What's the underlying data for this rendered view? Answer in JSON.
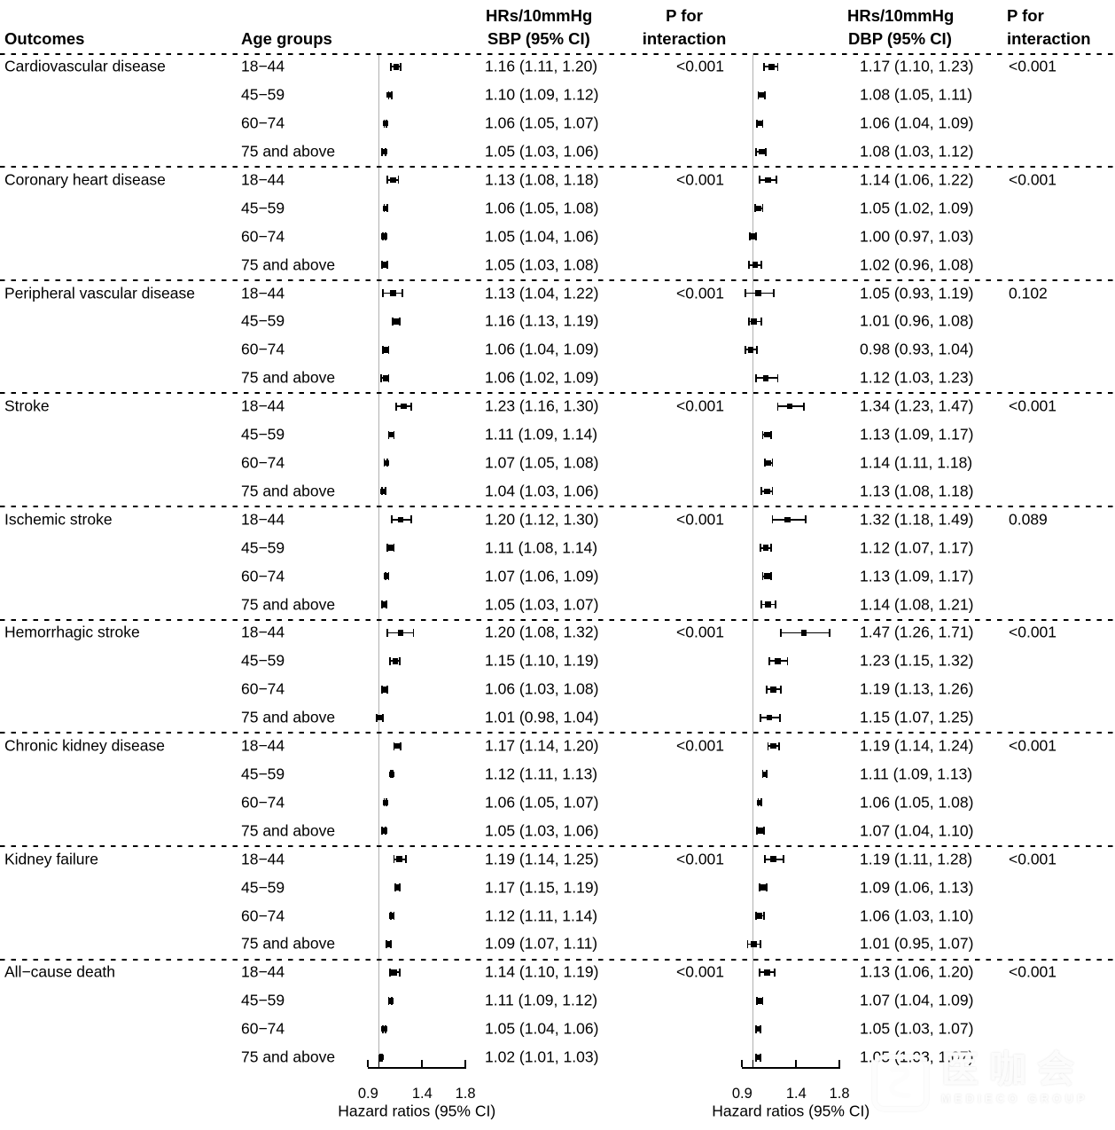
{
  "figure": {
    "columns": {
      "outcomes": "Outcomes",
      "age": "Age groups",
      "sbp": {
        "line1": "HRs/10mmHg",
        "line2": "SBP (95% CI)"
      },
      "p1": {
        "line1": "P for",
        "line2": "interaction"
      },
      "dbp": {
        "line1": "HRs/10mmHg",
        "line2": "DBP (95% CI)"
      },
      "p2": {
        "line1": "P for",
        "line2": "interaction"
      }
    }
  },
  "chart_data": {
    "type": "forest",
    "scale": "linear",
    "axis": {
      "range": [
        0.9,
        1.8
      ],
      "ticks": [
        0.9,
        1.0,
        1.4,
        1.8
      ],
      "tick_labels": [
        {
          "v": 0.9,
          "t": "0.9"
        },
        {
          "v": 1.4,
          "t": "1.4"
        },
        {
          "v": 1.8,
          "t": "1.8"
        }
      ],
      "refline": 1.0,
      "xlabel": "Hazard ratios (95% CI)"
    },
    "groups": [
      {
        "outcome": "Cardiovascular disease",
        "rows": [
          {
            "age": "18−44",
            "sbp": {
              "hr": 1.16,
              "lo": 1.11,
              "hi": 1.2,
              "label": "1.16 (1.11, 1.20)"
            },
            "p_sbp": "<0.001",
            "dbp": {
              "hr": 1.17,
              "lo": 1.1,
              "hi": 1.23,
              "label": "1.17 (1.10, 1.23)"
            },
            "p_dbp": "<0.001"
          },
          {
            "age": "45−59",
            "sbp": {
              "hr": 1.1,
              "lo": 1.09,
              "hi": 1.12,
              "label": "1.10 (1.09, 1.12)"
            },
            "p_sbp": "",
            "dbp": {
              "hr": 1.08,
              "lo": 1.05,
              "hi": 1.11,
              "label": "1.08 (1.05, 1.11)"
            },
            "p_dbp": ""
          },
          {
            "age": "60−74",
            "sbp": {
              "hr": 1.06,
              "lo": 1.05,
              "hi": 1.07,
              "label": "1.06 (1.05, 1.07)"
            },
            "p_sbp": "",
            "dbp": {
              "hr": 1.06,
              "lo": 1.04,
              "hi": 1.09,
              "label": "1.06 (1.04, 1.09)"
            },
            "p_dbp": ""
          },
          {
            "age": "75 and above",
            "sbp": {
              "hr": 1.05,
              "lo": 1.03,
              "hi": 1.06,
              "label": "1.05 (1.03, 1.06)"
            },
            "p_sbp": "",
            "dbp": {
              "hr": 1.08,
              "lo": 1.03,
              "hi": 1.12,
              "label": "1.08 (1.03, 1.12)"
            },
            "p_dbp": ""
          }
        ]
      },
      {
        "outcome": "Coronary heart disease",
        "rows": [
          {
            "age": "18−44",
            "sbp": {
              "hr": 1.13,
              "lo": 1.08,
              "hi": 1.18,
              "label": "1.13 (1.08, 1.18)"
            },
            "p_sbp": "<0.001",
            "dbp": {
              "hr": 1.14,
              "lo": 1.06,
              "hi": 1.22,
              "label": "1.14 (1.06, 1.22)"
            },
            "p_dbp": "<0.001"
          },
          {
            "age": "45−59",
            "sbp": {
              "hr": 1.06,
              "lo": 1.05,
              "hi": 1.08,
              "label": "1.06 (1.05, 1.08)"
            },
            "p_sbp": "",
            "dbp": {
              "hr": 1.05,
              "lo": 1.02,
              "hi": 1.09,
              "label": "1.05 (1.02, 1.09)"
            },
            "p_dbp": ""
          },
          {
            "age": "60−74",
            "sbp": {
              "hr": 1.05,
              "lo": 1.04,
              "hi": 1.06,
              "label": "1.05 (1.04, 1.06)"
            },
            "p_sbp": "",
            "dbp": {
              "hr": 1.0,
              "lo": 0.97,
              "hi": 1.03,
              "label": "1.00 (0.97, 1.03)"
            },
            "p_dbp": ""
          },
          {
            "age": "75 and above",
            "sbp": {
              "hr": 1.05,
              "lo": 1.03,
              "hi": 1.08,
              "label": "1.05 (1.03, 1.08)"
            },
            "p_sbp": "",
            "dbp": {
              "hr": 1.02,
              "lo": 0.96,
              "hi": 1.08,
              "label": "1.02 (0.96, 1.08)"
            },
            "p_dbp": ""
          }
        ]
      },
      {
        "outcome": "Peripheral vascular disease",
        "rows": [
          {
            "age": "18−44",
            "sbp": {
              "hr": 1.13,
              "lo": 1.04,
              "hi": 1.22,
              "label": "1.13 (1.04, 1.22)"
            },
            "p_sbp": "<0.001",
            "dbp": {
              "hr": 1.05,
              "lo": 0.93,
              "hi": 1.19,
              "label": "1.05 (0.93, 1.19)"
            },
            "p_dbp": "0.102"
          },
          {
            "age": "45−59",
            "sbp": {
              "hr": 1.16,
              "lo": 1.13,
              "hi": 1.19,
              "label": "1.16 (1.13, 1.19)"
            },
            "p_sbp": "",
            "dbp": {
              "hr": 1.01,
              "lo": 0.96,
              "hi": 1.08,
              "label": "1.01 (0.96, 1.08)"
            },
            "p_dbp": ""
          },
          {
            "age": "60−74",
            "sbp": {
              "hr": 1.06,
              "lo": 1.04,
              "hi": 1.09,
              "label": "1.06 (1.04, 1.09)"
            },
            "p_sbp": "",
            "dbp": {
              "hr": 0.98,
              "lo": 0.93,
              "hi": 1.04,
              "label": "0.98 (0.93, 1.04)"
            },
            "p_dbp": ""
          },
          {
            "age": "75 and above",
            "sbp": {
              "hr": 1.06,
              "lo": 1.02,
              "hi": 1.09,
              "label": "1.06 (1.02, 1.09)"
            },
            "p_sbp": "",
            "dbp": {
              "hr": 1.12,
              "lo": 1.03,
              "hi": 1.23,
              "label": "1.12 (1.03, 1.23)"
            },
            "p_dbp": ""
          }
        ]
      },
      {
        "outcome": "Stroke",
        "rows": [
          {
            "age": "18−44",
            "sbp": {
              "hr": 1.23,
              "lo": 1.16,
              "hi": 1.3,
              "label": "1.23 (1.16, 1.30)"
            },
            "p_sbp": "<0.001",
            "dbp": {
              "hr": 1.34,
              "lo": 1.23,
              "hi": 1.47,
              "label": "1.34 (1.23, 1.47)"
            },
            "p_dbp": "<0.001"
          },
          {
            "age": "45−59",
            "sbp": {
              "hr": 1.11,
              "lo": 1.09,
              "hi": 1.14,
              "label": "1.11 (1.09, 1.14)"
            },
            "p_sbp": "",
            "dbp": {
              "hr": 1.13,
              "lo": 1.09,
              "hi": 1.17,
              "label": "1.13 (1.09, 1.17)"
            },
            "p_dbp": ""
          },
          {
            "age": "60−74",
            "sbp": {
              "hr": 1.07,
              "lo": 1.05,
              "hi": 1.08,
              "label": "1.07 (1.05, 1.08)"
            },
            "p_sbp": "",
            "dbp": {
              "hr": 1.14,
              "lo": 1.11,
              "hi": 1.18,
              "label": "1.14 (1.11, 1.18)"
            },
            "p_dbp": ""
          },
          {
            "age": "75 and above",
            "sbp": {
              "hr": 1.04,
              "lo": 1.03,
              "hi": 1.06,
              "label": "1.04 (1.03, 1.06)"
            },
            "p_sbp": "",
            "dbp": {
              "hr": 1.13,
              "lo": 1.08,
              "hi": 1.18,
              "label": "1.13 (1.08, 1.18)"
            },
            "p_dbp": ""
          }
        ]
      },
      {
        "outcome": "Ischemic stroke",
        "rows": [
          {
            "age": "18−44",
            "sbp": {
              "hr": 1.2,
              "lo": 1.12,
              "hi": 1.3,
              "label": "1.20 (1.12, 1.30)"
            },
            "p_sbp": "<0.001",
            "dbp": {
              "hr": 1.32,
              "lo": 1.18,
              "hi": 1.49,
              "label": "1.32 (1.18, 1.49)"
            },
            "p_dbp": "0.089"
          },
          {
            "age": "45−59",
            "sbp": {
              "hr": 1.11,
              "lo": 1.08,
              "hi": 1.14,
              "label": "1.11 (1.08, 1.14)"
            },
            "p_sbp": "",
            "dbp": {
              "hr": 1.12,
              "lo": 1.07,
              "hi": 1.17,
              "label": "1.12 (1.07, 1.17)"
            },
            "p_dbp": ""
          },
          {
            "age": "60−74",
            "sbp": {
              "hr": 1.07,
              "lo": 1.06,
              "hi": 1.09,
              "label": "1.07 (1.06, 1.09)"
            },
            "p_sbp": "",
            "dbp": {
              "hr": 1.13,
              "lo": 1.09,
              "hi": 1.17,
              "label": "1.13 (1.09, 1.17)"
            },
            "p_dbp": ""
          },
          {
            "age": "75 and above",
            "sbp": {
              "hr": 1.05,
              "lo": 1.03,
              "hi": 1.07,
              "label": "1.05 (1.03, 1.07)"
            },
            "p_sbp": "",
            "dbp": {
              "hr": 1.14,
              "lo": 1.08,
              "hi": 1.21,
              "label": "1.14 (1.08, 1.21)"
            },
            "p_dbp": ""
          }
        ]
      },
      {
        "outcome": "Hemorrhagic stroke",
        "rows": [
          {
            "age": "18−44",
            "sbp": {
              "hr": 1.2,
              "lo": 1.08,
              "hi": 1.32,
              "label": "1.20 (1.08, 1.32)"
            },
            "p_sbp": "<0.001",
            "dbp": {
              "hr": 1.47,
              "lo": 1.26,
              "hi": 1.71,
              "label": "1.47 (1.26, 1.71)"
            },
            "p_dbp": "<0.001"
          },
          {
            "age": "45−59",
            "sbp": {
              "hr": 1.15,
              "lo": 1.1,
              "hi": 1.19,
              "label": "1.15 (1.10, 1.19)"
            },
            "p_sbp": "",
            "dbp": {
              "hr": 1.23,
              "lo": 1.15,
              "hi": 1.32,
              "label": "1.23 (1.15, 1.32)"
            },
            "p_dbp": ""
          },
          {
            "age": "60−74",
            "sbp": {
              "hr": 1.06,
              "lo": 1.03,
              "hi": 1.08,
              "label": "1.06 (1.03, 1.08)"
            },
            "p_sbp": "",
            "dbp": {
              "hr": 1.19,
              "lo": 1.13,
              "hi": 1.26,
              "label": "1.19 (1.13, 1.26)"
            },
            "p_dbp": ""
          },
          {
            "age": "75 and above",
            "sbp": {
              "hr": 1.01,
              "lo": 0.98,
              "hi": 1.04,
              "label": "1.01 (0.98, 1.04)"
            },
            "p_sbp": "",
            "dbp": {
              "hr": 1.15,
              "lo": 1.07,
              "hi": 1.25,
              "label": "1.15 (1.07, 1.25)"
            },
            "p_dbp": ""
          }
        ]
      },
      {
        "outcome": "Chronic kidney disease",
        "rows": [
          {
            "age": "18−44",
            "sbp": {
              "hr": 1.17,
              "lo": 1.14,
              "hi": 1.2,
              "label": "1.17 (1.14, 1.20)"
            },
            "p_sbp": "<0.001",
            "dbp": {
              "hr": 1.19,
              "lo": 1.14,
              "hi": 1.24,
              "label": "1.19 (1.14, 1.24)"
            },
            "p_dbp": "<0.001"
          },
          {
            "age": "45−59",
            "sbp": {
              "hr": 1.12,
              "lo": 1.11,
              "hi": 1.13,
              "label": "1.12 (1.11, 1.13)"
            },
            "p_sbp": "",
            "dbp": {
              "hr": 1.11,
              "lo": 1.09,
              "hi": 1.13,
              "label": "1.11 (1.09, 1.13)"
            },
            "p_dbp": ""
          },
          {
            "age": "60−74",
            "sbp": {
              "hr": 1.06,
              "lo": 1.05,
              "hi": 1.07,
              "label": "1.06 (1.05, 1.07)"
            },
            "p_sbp": "",
            "dbp": {
              "hr": 1.06,
              "lo": 1.05,
              "hi": 1.08,
              "label": "1.06 (1.05, 1.08)"
            },
            "p_dbp": ""
          },
          {
            "age": "75 and above",
            "sbp": {
              "hr": 1.05,
              "lo": 1.03,
              "hi": 1.06,
              "label": "1.05 (1.03, 1.06)"
            },
            "p_sbp": "",
            "dbp": {
              "hr": 1.07,
              "lo": 1.04,
              "hi": 1.1,
              "label": "1.07 (1.04, 1.10)"
            },
            "p_dbp": ""
          }
        ]
      },
      {
        "outcome": "Kidney failure",
        "rows": [
          {
            "age": "18−44",
            "sbp": {
              "hr": 1.19,
              "lo": 1.14,
              "hi": 1.25,
              "label": "1.19 (1.14, 1.25)"
            },
            "p_sbp": "<0.001",
            "dbp": {
              "hr": 1.19,
              "lo": 1.11,
              "hi": 1.28,
              "label": "1.19 (1.11, 1.28)"
            },
            "p_dbp": "<0.001"
          },
          {
            "age": "45−59",
            "sbp": {
              "hr": 1.17,
              "lo": 1.15,
              "hi": 1.19,
              "label": "1.17 (1.15, 1.19)"
            },
            "p_sbp": "",
            "dbp": {
              "hr": 1.09,
              "lo": 1.06,
              "hi": 1.13,
              "label": "1.09 (1.06, 1.13)"
            },
            "p_dbp": ""
          },
          {
            "age": "60−74",
            "sbp": {
              "hr": 1.12,
              "lo": 1.11,
              "hi": 1.14,
              "label": "1.12 (1.11, 1.14)"
            },
            "p_sbp": "",
            "dbp": {
              "hr": 1.06,
              "lo": 1.03,
              "hi": 1.1,
              "label": "1.06 (1.03, 1.10)"
            },
            "p_dbp": ""
          },
          {
            "age": "75 and above",
            "sbp": {
              "hr": 1.09,
              "lo": 1.07,
              "hi": 1.11,
              "label": "1.09 (1.07, 1.11)"
            },
            "p_sbp": "",
            "dbp": {
              "hr": 1.01,
              "lo": 0.95,
              "hi": 1.07,
              "label": "1.01 (0.95, 1.07)"
            },
            "p_dbp": ""
          }
        ]
      },
      {
        "outcome": "All−cause death",
        "rows": [
          {
            "age": "18−44",
            "sbp": {
              "hr": 1.14,
              "lo": 1.1,
              "hi": 1.19,
              "label": "1.14 (1.10, 1.19)"
            },
            "p_sbp": "<0.001",
            "dbp": {
              "hr": 1.13,
              "lo": 1.06,
              "hi": 1.2,
              "label": "1.13 (1.06, 1.20)"
            },
            "p_dbp": "<0.001"
          },
          {
            "age": "45−59",
            "sbp": {
              "hr": 1.11,
              "lo": 1.09,
              "hi": 1.12,
              "label": "1.11 (1.09, 1.12)"
            },
            "p_sbp": "",
            "dbp": {
              "hr": 1.07,
              "lo": 1.04,
              "hi": 1.09,
              "label": "1.07 (1.04, 1.09)"
            },
            "p_dbp": ""
          },
          {
            "age": "60−74",
            "sbp": {
              "hr": 1.05,
              "lo": 1.04,
              "hi": 1.06,
              "label": "1.05 (1.04, 1.06)"
            },
            "p_sbp": "",
            "dbp": {
              "hr": 1.05,
              "lo": 1.03,
              "hi": 1.07,
              "label": "1.05 (1.03, 1.07)"
            },
            "p_dbp": ""
          },
          {
            "age": "75 and above",
            "sbp": {
              "hr": 1.02,
              "lo": 1.01,
              "hi": 1.03,
              "label": "1.02 (1.01, 1.03)"
            },
            "p_sbp": "",
            "dbp": {
              "hr": 1.05,
              "lo": 1.03,
              "hi": 1.07,
              "label": "1.05 (1.03, 1.07)"
            },
            "p_dbp": ""
          }
        ]
      }
    ]
  },
  "watermark": {
    "brand": "医咖会",
    "subtext": "MEDIECO GROUP"
  },
  "colors": {
    "marker": "#000000",
    "refline": "#b0b0b0",
    "text": "#000000",
    "background": "#ffffff"
  }
}
